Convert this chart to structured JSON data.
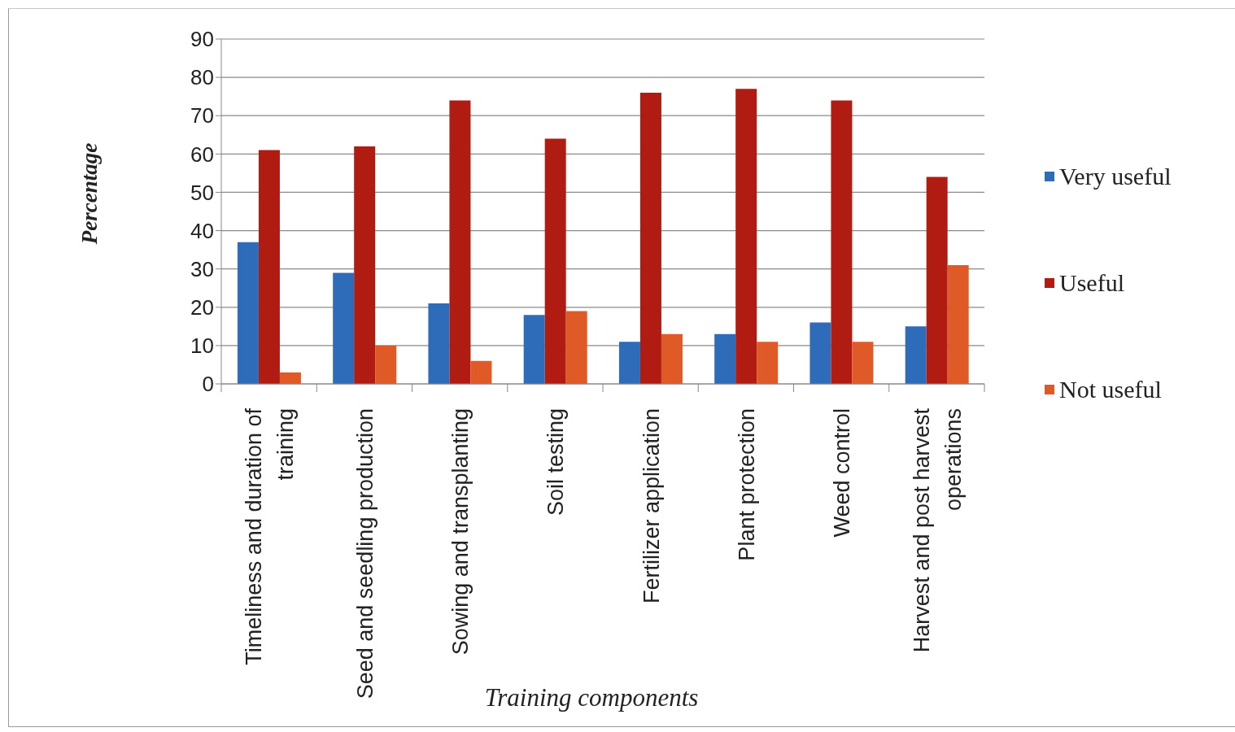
{
  "chart_data": {
    "type": "bar",
    "xlabel": "Training components",
    "ylabel": "Percentage",
    "categories": [
      "Timeliness and duration of training",
      "Seed and seedling production",
      "Sowing and transplanting",
      "Soil testing",
      "Fertilizer application",
      "Plant protection",
      "Weed control",
      "Harvest and post harvest operations"
    ],
    "series": [
      {
        "name": "Very useful",
        "color": "#2e6bb8",
        "values": [
          37,
          29,
          21,
          18,
          11,
          13,
          16,
          15
        ]
      },
      {
        "name": "Useful",
        "color": "#b01c12",
        "values": [
          61,
          62,
          74,
          64,
          76,
          77,
          74,
          54
        ]
      },
      {
        "name": "Not useful",
        "color": "#e05a28",
        "values": [
          3,
          10,
          6,
          19,
          13,
          11,
          11,
          31
        ]
      }
    ],
    "ylim": [
      0,
      90
    ],
    "yticks": [
      0,
      10,
      20,
      30,
      40,
      50,
      60,
      70,
      80,
      90
    ],
    "grid": "y",
    "legend": "right"
  }
}
